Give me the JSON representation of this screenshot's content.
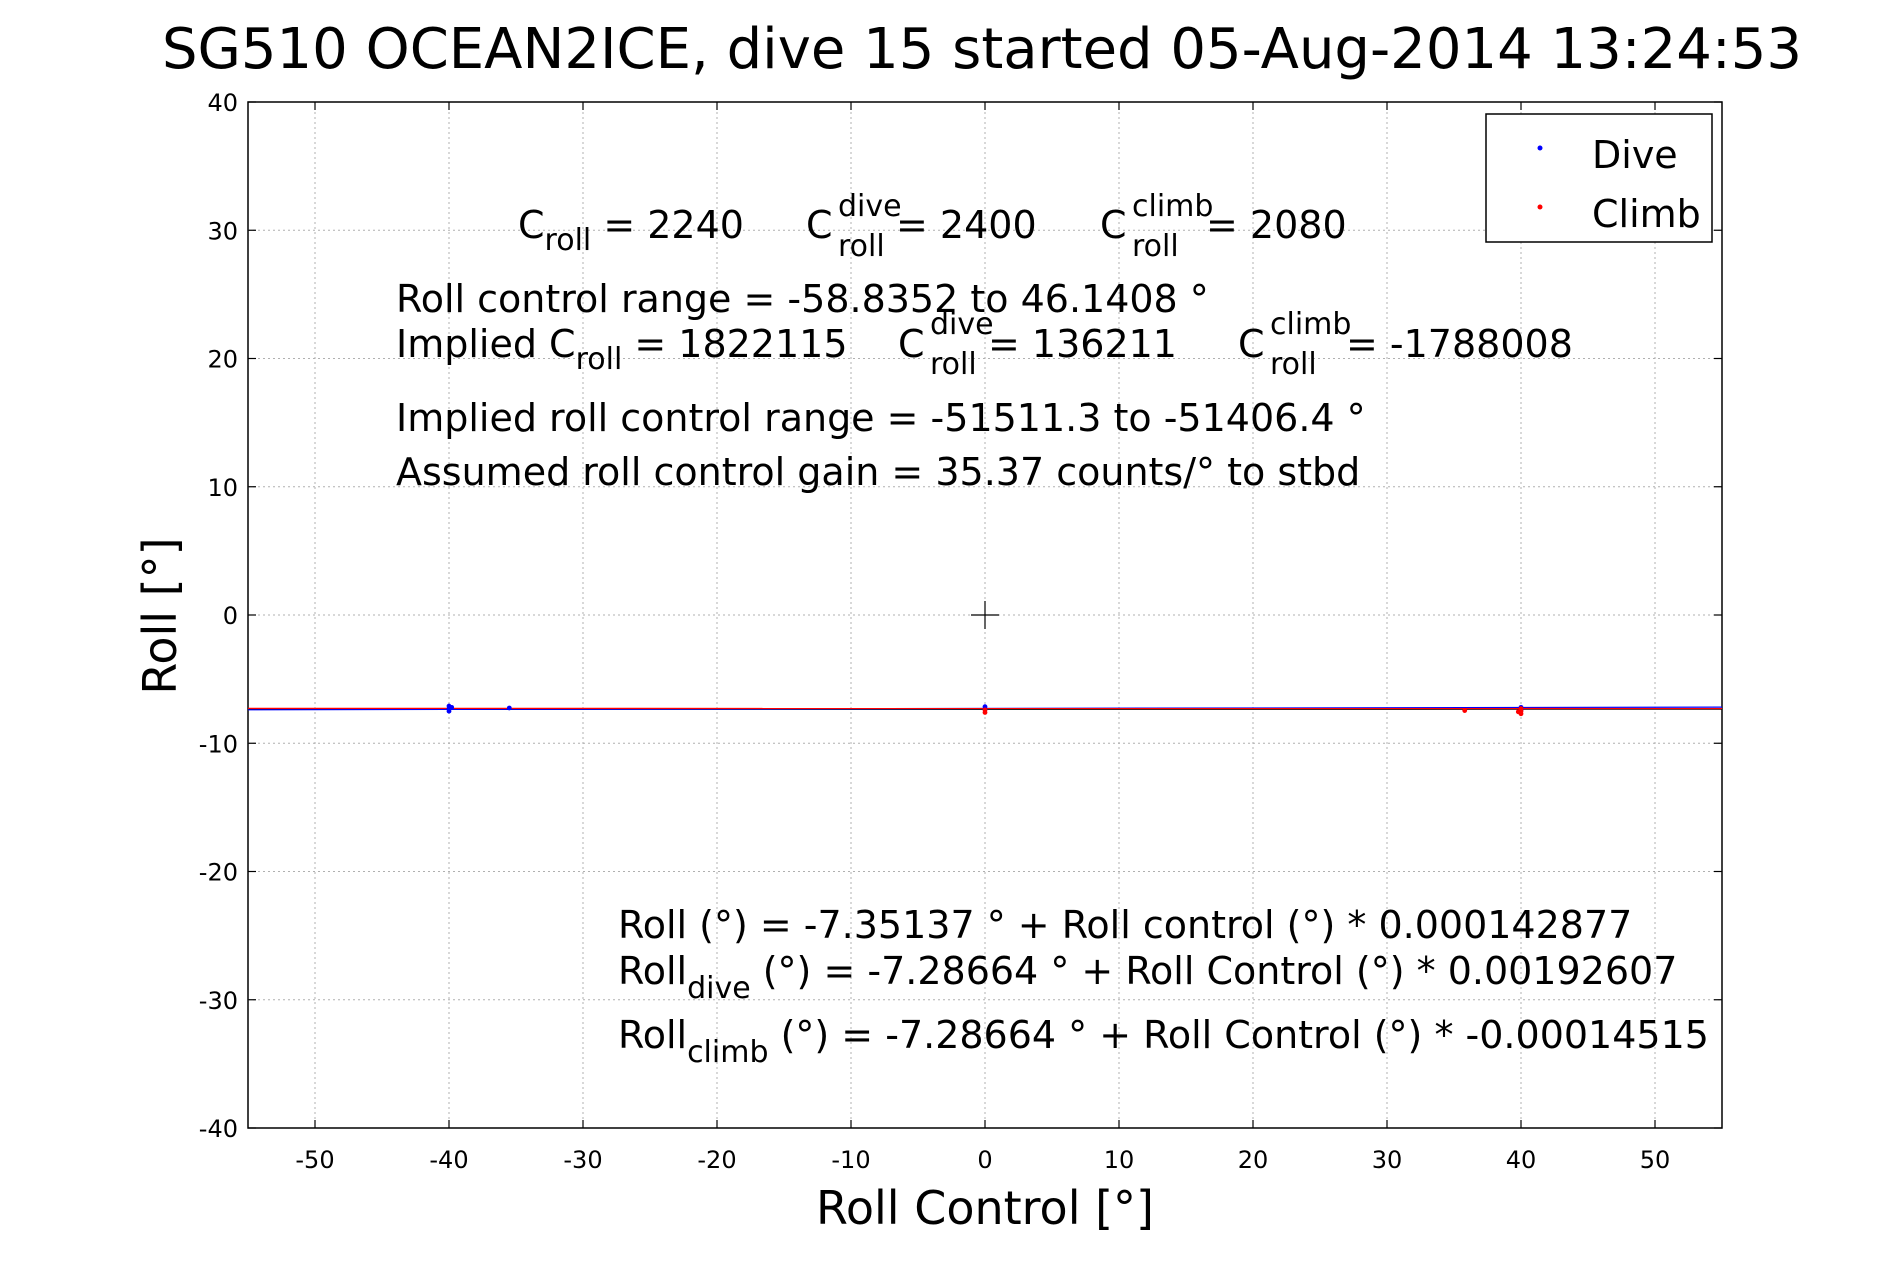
{
  "chart_data": {
    "type": "scatter",
    "title": "SG510 OCEAN2ICE, dive 15 started 05-Aug-2014 13:24:53",
    "xlabel": "Roll Control [°]",
    "ylabel": "Roll [°]",
    "xlim": [
      -55,
      55
    ],
    "ylim": [
      -40,
      40
    ],
    "xticks": [
      -50,
      -40,
      -30,
      -20,
      -10,
      0,
      10,
      20,
      30,
      40,
      50
    ],
    "yticks": [
      -40,
      -30,
      -20,
      -10,
      0,
      10,
      20,
      30,
      40
    ],
    "xtick_labels": [
      "-50",
      "-40",
      "-30",
      "-20",
      "-10",
      "0",
      "10",
      "20",
      "30",
      "40",
      "50"
    ],
    "ytick_labels": [
      "-40",
      "-30",
      "-20",
      "-10",
      "0",
      "10",
      "20",
      "30",
      "40"
    ],
    "grid": true,
    "legend_position": "top-right",
    "series": [
      {
        "name": "Dive",
        "color": "#0000ff",
        "points": [
          [
            -40,
            -7.1
          ],
          [
            -40,
            -7.3
          ],
          [
            -40,
            -7.5
          ],
          [
            -39.8,
            -7.2
          ],
          [
            -35.5,
            -7.25
          ],
          [
            0,
            -7.15
          ],
          [
            0,
            -7.35
          ],
          [
            40,
            -7.2
          ],
          [
            40,
            -7.4
          ]
        ]
      },
      {
        "name": "Climb",
        "color": "#ff0000",
        "points": [
          [
            0,
            -7.4
          ],
          [
            0,
            -7.6
          ],
          [
            35.8,
            -7.45
          ],
          [
            40,
            -7.3
          ],
          [
            40,
            -7.5
          ],
          [
            40,
            -7.7
          ],
          [
            39.8,
            -7.55
          ]
        ]
      }
    ],
    "fit_lines": [
      {
        "color": "#000000",
        "intercept": -7.35137,
        "slope": 0.000142877,
        "x_range": [
          -55,
          55
        ]
      },
      {
        "color": "#0000ff",
        "intercept": -7.28664,
        "slope": 0.00192607,
        "x_range": [
          -55,
          55
        ]
      },
      {
        "color": "#ff0000",
        "intercept": -7.28664,
        "slope": -0.00014515,
        "x_range": [
          -55,
          55
        ]
      }
    ],
    "crosshair": {
      "x": 0,
      "y": 0
    },
    "annotations": {
      "c_line": {
        "c1": "C",
        "c1_sub": "roll",
        "c1_val": " = 2240",
        "c2": "C",
        "c2_sup": "dive",
        "c2_sub": "roll",
        "c2_val": " = 2400",
        "c3": "C",
        "c3_sup": "climb",
        "c3_sub": "roll",
        "c3_val": " = 2080"
      },
      "range": "Roll control range = -58.8352 to 46.1408 °",
      "implied": {
        "prefix": "Implied C",
        "sub1": "roll",
        "val1": " = 1822115",
        "c2": "C",
        "c2_sup": "dive",
        "c2_sub": "roll",
        "c2_val": " = 136211",
        "c3": "C",
        "c3_sup": "climb",
        "c3_sub": "roll",
        "c3_val": " = -1788008"
      },
      "implied_range": "Implied roll control range = -51511.3 to -51406.4 °",
      "gain": "Assumed roll control gain = 35.37 counts/° to stbd",
      "eq1": "Roll (°) = -7.35137 ° + Roll control (°) * 0.000142877",
      "eq2": {
        "a": "Roll",
        "sub": "dive",
        "b": " (°) = -7.28664 ° + Roll Control (°) * 0.00192607"
      },
      "eq3": {
        "a": "Roll",
        "sub": "climb",
        "b": " (°) = -7.28664 ° + Roll Control (°) * -0.00014515"
      }
    }
  }
}
